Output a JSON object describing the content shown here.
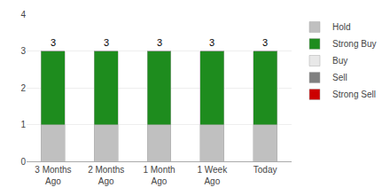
{
  "chart_data": {
    "type": "bar",
    "stacked": true,
    "categories": [
      "3 Months\nAgo",
      "2 Months\nAgo",
      "1 Month\nAgo",
      "1 Week\nAgo",
      "Today"
    ],
    "series": [
      {
        "name": "Hold",
        "color": "#c0c0c0",
        "values": [
          1,
          1,
          1,
          1,
          1
        ]
      },
      {
        "name": "Strong Buy",
        "color": "#1e8c1e",
        "values": [
          2,
          2,
          2,
          2,
          2
        ]
      },
      {
        "name": "Buy",
        "color": "#e8e8e8",
        "values": [
          0,
          0,
          0,
          0,
          0
        ]
      },
      {
        "name": "Sell",
        "color": "#808080",
        "values": [
          0,
          0,
          0,
          0,
          0
        ]
      },
      {
        "name": "Strong Sell",
        "color": "#cc0000",
        "values": [
          0,
          0,
          0,
          0,
          0
        ]
      }
    ],
    "totals": [
      3,
      3,
      3,
      3,
      3
    ],
    "ylim": [
      0,
      4
    ],
    "yticks": [
      0,
      1,
      2,
      3,
      4
    ],
    "grid": true,
    "legend": "right"
  }
}
